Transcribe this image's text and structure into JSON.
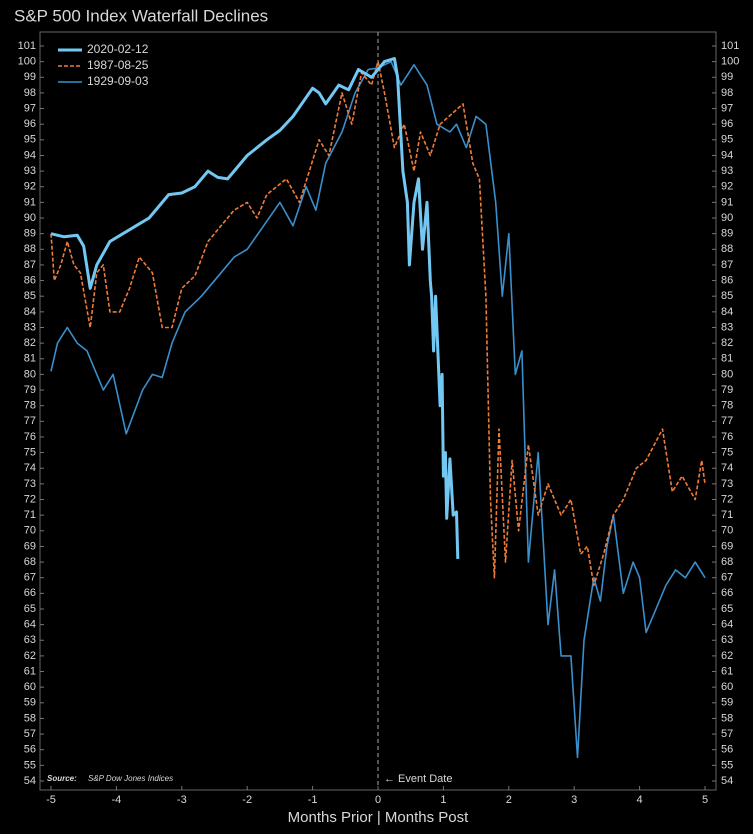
{
  "chart_data": {
    "type": "line",
    "title": "S&P 500 Index Waterfall Declines",
    "x_label": "Months Prior | Months Post",
    "event_label": "← Event Date",
    "source_label": "Source:",
    "source": "S&P Dow Jones Indices",
    "xlim": [
      -5,
      5
    ],
    "xticks": [
      -5,
      -4,
      -3,
      -2,
      -1,
      0,
      1,
      2,
      3,
      4,
      5
    ],
    "ylim": [
      54,
      101
    ],
    "yticks": [
      54,
      55,
      56,
      57,
      58,
      59,
      60,
      61,
      62,
      63,
      64,
      65,
      66,
      67,
      68,
      69,
      70,
      71,
      72,
      73,
      74,
      75,
      76,
      77,
      78,
      79,
      80,
      81,
      82,
      83,
      84,
      85,
      86,
      87,
      88,
      89,
      90,
      91,
      92,
      93,
      94,
      95,
      96,
      97,
      98,
      99,
      100,
      101
    ],
    "legend": "upper left",
    "series": [
      {
        "name": "2020-02-12",
        "color": "#72c8f2",
        "style": "solid",
        "width": 3,
        "x": [
          -5,
          -4.8,
          -4.6,
          -4.5,
          -4.4,
          -4.3,
          -4.1,
          -3.9,
          -3.7,
          -3.5,
          -3.2,
          -3.0,
          -2.8,
          -2.6,
          -2.45,
          -2.3,
          -2.0,
          -1.7,
          -1.5,
          -1.3,
          -1.0,
          -0.9,
          -0.8,
          -0.6,
          -0.45,
          -0.3,
          -0.1,
          0.1,
          0.25,
          0.3,
          0.38,
          0.45,
          0.48,
          0.55,
          0.62,
          0.68,
          0.75,
          0.8,
          0.82,
          0.85,
          0.88,
          0.95,
          0.98,
          1.0,
          1.03,
          1.05,
          1.1,
          1.15,
          1.2,
          1.22
        ],
        "values": [
          89,
          88.8,
          88.9,
          88.2,
          85.5,
          87,
          88.5,
          89,
          89.5,
          90,
          91.5,
          91.6,
          92,
          93,
          92.6,
          92.5,
          94,
          95,
          95.6,
          96.5,
          98.3,
          98,
          97.3,
          98.5,
          98.2,
          99.5,
          99,
          100,
          100.2,
          99,
          93,
          91,
          87,
          91,
          92.5,
          88,
          91,
          86,
          85,
          81.5,
          85,
          78,
          80,
          73.5,
          75,
          70.8,
          74.6,
          71,
          71.2,
          68.2
        ]
      },
      {
        "name": "1987-08-25",
        "color": "#f07c38",
        "style": "dashed",
        "width": 1.6,
        "x": [
          -5,
          -4.95,
          -4.85,
          -4.75,
          -4.65,
          -4.55,
          -4.4,
          -4.3,
          -4.2,
          -4.1,
          -3.95,
          -3.8,
          -3.65,
          -3.45,
          -3.3,
          -3.15,
          -3.0,
          -2.8,
          -2.6,
          -2.4,
          -2.2,
          -2.0,
          -1.85,
          -1.7,
          -1.4,
          -1.2,
          -0.9,
          -0.75,
          -0.55,
          -0.4,
          -0.25,
          -0.1,
          0,
          0.1,
          0.25,
          0.4,
          0.55,
          0.65,
          0.8,
          0.95,
          1.3,
          1.45,
          1.55,
          1.65,
          1.72,
          1.78,
          1.85,
          1.95,
          2.05,
          2.15,
          2.3,
          2.45,
          2.6,
          2.8,
          2.95,
          3.1,
          3.2,
          3.3,
          3.45,
          3.6,
          3.75,
          3.95,
          4.1,
          4.35,
          4.5,
          4.65,
          4.85,
          4.95,
          5.0
        ],
        "values": [
          89,
          86,
          87,
          88.5,
          87,
          86.5,
          83,
          86.5,
          87,
          84,
          84,
          85.5,
          87.5,
          86.5,
          83,
          83,
          85.5,
          86.3,
          88.5,
          89.5,
          90.5,
          91,
          90,
          91.5,
          92.5,
          91,
          95,
          94,
          98,
          96,
          99.3,
          98.5,
          100,
          98,
          94.5,
          96,
          93,
          95.5,
          94,
          96,
          97.3,
          93.5,
          92.5,
          85,
          72,
          67,
          76.5,
          68,
          74.5,
          70,
          75.5,
          71,
          73,
          71,
          72,
          68.5,
          69,
          66.5,
          68.5,
          71,
          72,
          74,
          74.5,
          76.5,
          72.5,
          73.5,
          72,
          74.5,
          73
        ]
      },
      {
        "name": "1929-09-03",
        "color": "#3a8fcc",
        "style": "solid",
        "width": 1.6,
        "x": [
          -5,
          -4.9,
          -4.75,
          -4.6,
          -4.45,
          -4.2,
          -4.05,
          -3.85,
          -3.6,
          -3.45,
          -3.3,
          -3.15,
          -2.95,
          -2.7,
          -2.4,
          -2.2,
          -2.0,
          -1.75,
          -1.5,
          -1.3,
          -1.1,
          -0.95,
          -0.8,
          -0.55,
          -0.35,
          -0.15,
          0,
          0.2,
          0.35,
          0.55,
          0.75,
          0.9,
          1.1,
          1.2,
          1.35,
          1.5,
          1.65,
          1.8,
          1.9,
          2.0,
          2.1,
          2.2,
          2.3,
          2.45,
          2.6,
          2.7,
          2.8,
          2.95,
          3.05,
          3.15,
          3.3,
          3.4,
          3.5,
          3.6,
          3.75,
          3.9,
          4.0,
          4.1,
          4.25,
          4.4,
          4.55,
          4.7,
          4.85,
          5.0
        ],
        "values": [
          80.2,
          82,
          83,
          82,
          81.5,
          79,
          80,
          76.2,
          79,
          80,
          79.8,
          82,
          84,
          85,
          86.5,
          87.5,
          88,
          89.5,
          91,
          89.5,
          92,
          90.5,
          93.5,
          95.5,
          98,
          99.5,
          99.6,
          100,
          98.5,
          99.8,
          98.5,
          96,
          95.5,
          96,
          94.5,
          96.5,
          96,
          91,
          85,
          89,
          80,
          81.5,
          68,
          75,
          64,
          67.5,
          62,
          62,
          55.5,
          63,
          67,
          65.5,
          69,
          71,
          66,
          68,
          67,
          63.5,
          65,
          66.5,
          67.5,
          67,
          68,
          67
        ]
      }
    ]
  }
}
